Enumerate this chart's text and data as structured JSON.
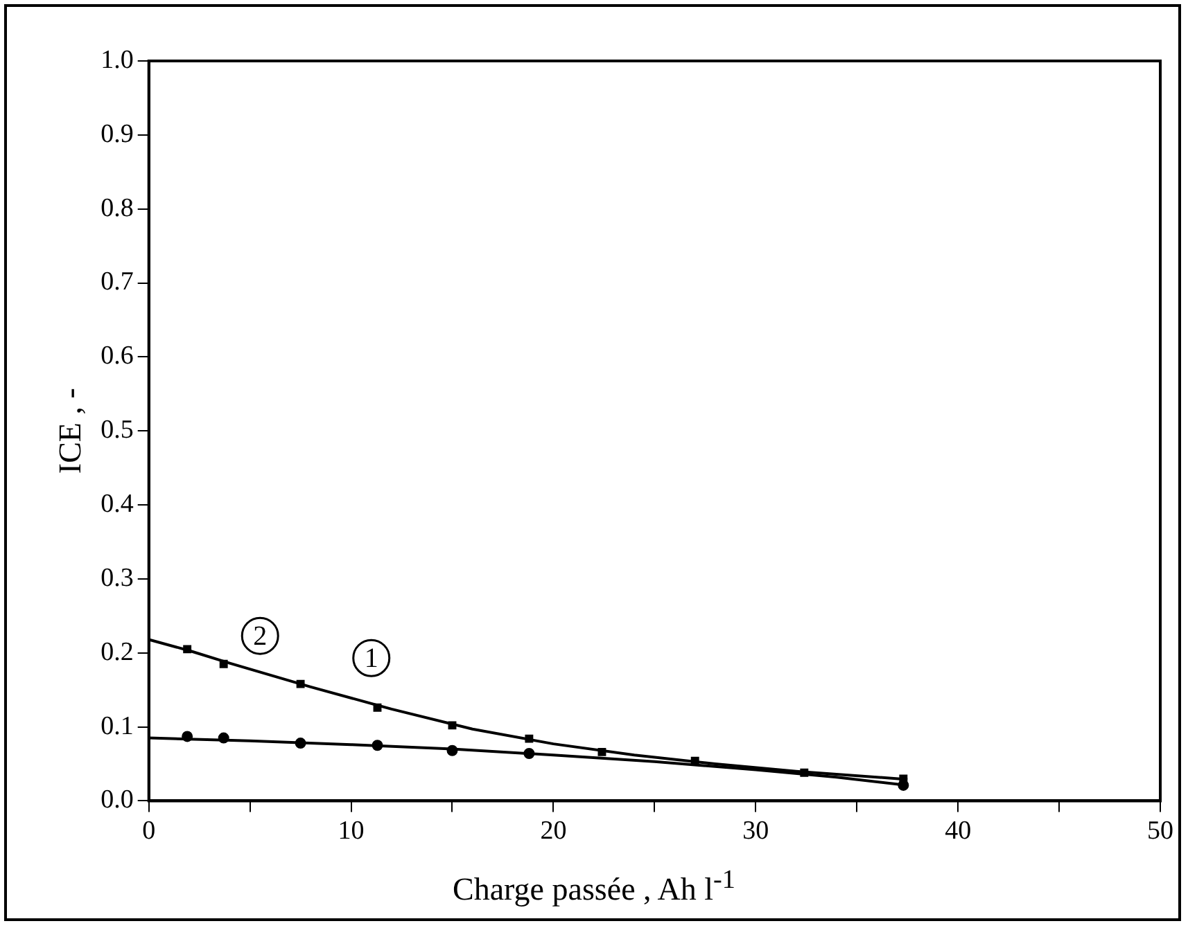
{
  "chart_data": {
    "type": "scatter",
    "xlabel": "Charge passée , Ah l$^{-1}$",
    "ylabel": "ICE , -",
    "xlim": [
      0,
      50
    ],
    "xticks": [
      0,
      {
        "value": 5,
        "label": null
      },
      10,
      {
        "value": 15,
        "label": null
      },
      20,
      {
        "value": 25,
        "label": null
      },
      30,
      {
        "value": 35,
        "label": null
      },
      40,
      {
        "value": 45,
        "label": null
      },
      50
    ],
    "ylim": [
      0,
      1
    ],
    "yticks": [
      {
        "value": 0,
        "label": "0.0"
      },
      {
        "value": 0.1,
        "label": "0.1"
      },
      {
        "value": 0.2,
        "label": "0.2"
      },
      {
        "value": 0.3,
        "label": "0.3"
      },
      {
        "value": 0.4,
        "label": "0.4"
      },
      {
        "value": 0.5,
        "label": "0.5"
      },
      {
        "value": 0.6,
        "label": "0.6"
      },
      {
        "value": 0.7,
        "label": "0.7"
      },
      {
        "value": 0.8,
        "label": "0.8"
      },
      {
        "value": 0.9,
        "label": "0.9"
      },
      {
        "value": 1,
        "label": "1.0"
      }
    ],
    "grid": false,
    "legend": false,
    "series": [
      {
        "type": "scatter",
        "marker": "circle",
        "color": "#000000",
        "x": [
          1.9,
          3.7,
          7.5,
          11.3,
          15.0,
          18.8,
          37.3
        ],
        "values": [
          0.087,
          0.085,
          0.078,
          0.075,
          0.068,
          0.064,
          0.021
        ]
      },
      {
        "type": "scatter",
        "marker": "square",
        "color": "#000000",
        "x": [
          1.9,
          3.7,
          7.5,
          11.3,
          15.0,
          18.8,
          22.4,
          27.0,
          32.4,
          37.3
        ],
        "values": [
          0.205,
          0.185,
          0.158,
          0.126,
          0.102,
          0.084,
          0.066,
          0.054,
          0.038,
          0.03
        ]
      },
      {
        "type": "line",
        "marker": "none",
        "color": "#000000",
        "x": [
          0,
          5,
          10,
          15,
          20,
          25,
          30,
          34,
          37.5
        ],
        "values": [
          0.085,
          0.081,
          0.076,
          0.07,
          0.062,
          0.053,
          0.042,
          0.032,
          0.021
        ]
      },
      {
        "type": "line",
        "marker": "none",
        "color": "#000000",
        "x": [
          0,
          2,
          4,
          8,
          12,
          16,
          20,
          24,
          28,
          32,
          37.5
        ],
        "values": [
          0.218,
          0.203,
          0.186,
          0.154,
          0.124,
          0.097,
          0.077,
          0.062,
          0.05,
          0.04,
          0.029
        ]
      }
    ],
    "annotations": [
      {
        "text": "2",
        "x": 5.5,
        "y": 0.223
      },
      {
        "text": "1",
        "x": 11.0,
        "y": 0.193
      }
    ]
  }
}
